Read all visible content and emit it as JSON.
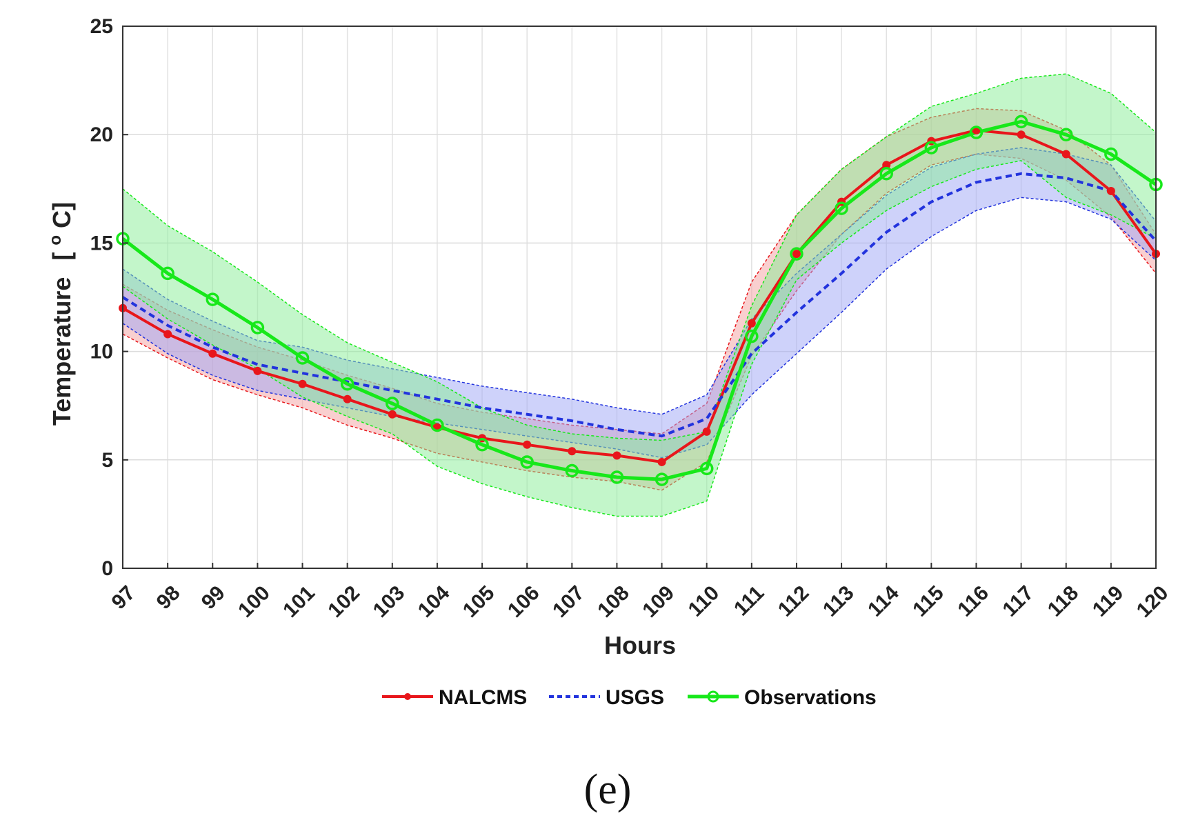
{
  "chart_data": {
    "type": "line",
    "title": "",
    "xlabel": "Hours",
    "ylabel_main": "Temperature",
    "ylabel_unit_open": "[",
    "ylabel_unit_deg": "o",
    "ylabel_unit_close": "C]",
    "xlim": [
      97,
      120
    ],
    "ylim": [
      0,
      25
    ],
    "yticks": [
      "0",
      "5",
      "10",
      "15",
      "20",
      "25"
    ],
    "x": [
      97,
      98,
      99,
      100,
      101,
      102,
      103,
      104,
      105,
      106,
      107,
      108,
      109,
      110,
      111,
      112,
      113,
      114,
      115,
      116,
      117,
      118,
      119,
      120
    ],
    "grid": true,
    "legend_position": "bottom-center",
    "series": [
      {
        "name": "NALCMS",
        "color": "#e8161b",
        "fill": "#f4a0a0",
        "style": "solid-dot",
        "values": [
          12.0,
          10.8,
          9.9,
          9.1,
          8.5,
          7.8,
          7.1,
          6.5,
          6.0,
          5.7,
          5.4,
          5.2,
          4.9,
          6.3,
          11.3,
          14.5,
          16.9,
          18.6,
          19.7,
          20.2,
          20.0,
          19.1,
          17.4,
          14.5
        ],
        "upper": [
          13.1,
          11.9,
          11.0,
          10.2,
          9.6,
          8.9,
          8.3,
          7.6,
          7.2,
          6.9,
          6.6,
          6.4,
          6.2,
          7.6,
          13.2,
          16.3,
          18.4,
          19.9,
          20.8,
          21.2,
          21.1,
          20.2,
          18.6,
          15.4
        ],
        "lower": [
          10.8,
          9.7,
          8.7,
          8.0,
          7.4,
          6.6,
          6.0,
          5.3,
          4.9,
          4.5,
          4.2,
          4.0,
          3.6,
          4.9,
          9.8,
          12.8,
          15.4,
          17.3,
          18.6,
          19.1,
          18.9,
          17.9,
          16.2,
          13.6
        ]
      },
      {
        "name": "USGS",
        "color": "#2233dd",
        "fill": "#9da6f5",
        "style": "dashed",
        "values": [
          12.5,
          11.2,
          10.2,
          9.4,
          9.0,
          8.6,
          8.2,
          7.8,
          7.4,
          7.1,
          6.8,
          6.4,
          6.1,
          6.9,
          9.9,
          11.8,
          13.6,
          15.5,
          16.9,
          17.8,
          18.2,
          18.0,
          17.4,
          15.1
        ],
        "upper": [
          13.8,
          12.4,
          11.4,
          10.5,
          10.2,
          9.6,
          9.2,
          8.8,
          8.4,
          8.1,
          7.8,
          7.4,
          7.1,
          8.0,
          11.5,
          13.6,
          15.4,
          17.2,
          18.5,
          19.1,
          19.4,
          19.1,
          18.6,
          16.0
        ],
        "lower": [
          11.3,
          9.9,
          8.9,
          8.2,
          7.8,
          7.4,
          7.0,
          6.7,
          6.4,
          6.1,
          5.8,
          5.5,
          5.1,
          5.7,
          8.0,
          9.9,
          11.8,
          13.8,
          15.3,
          16.5,
          17.1,
          16.9,
          16.1,
          14.2
        ]
      },
      {
        "name": "Observations",
        "color": "#17e81a",
        "fill": "#88ee95",
        "style": "solid-circle",
        "values": [
          15.2,
          13.6,
          12.4,
          11.1,
          9.7,
          8.5,
          7.6,
          6.6,
          5.7,
          4.9,
          4.5,
          4.2,
          4.1,
          4.6,
          10.7,
          14.5,
          16.6,
          18.2,
          19.4,
          20.1,
          20.6,
          20.0,
          19.1,
          17.7
        ],
        "upper": [
          17.5,
          15.8,
          14.6,
          13.2,
          11.7,
          10.4,
          9.5,
          8.6,
          7.4,
          6.6,
          6.2,
          6.0,
          5.9,
          6.3,
          12.1,
          16.3,
          18.4,
          19.9,
          21.3,
          21.9,
          22.6,
          22.8,
          21.9,
          20.1
        ],
        "lower": [
          13.0,
          11.5,
          10.3,
          9.2,
          7.9,
          7.0,
          6.2,
          4.7,
          3.9,
          3.3,
          2.8,
          2.4,
          2.4,
          3.1,
          9.4,
          13.3,
          15.0,
          16.5,
          17.6,
          18.4,
          18.8,
          17.1,
          16.3,
          15.2
        ]
      }
    ]
  },
  "caption": "(e)"
}
